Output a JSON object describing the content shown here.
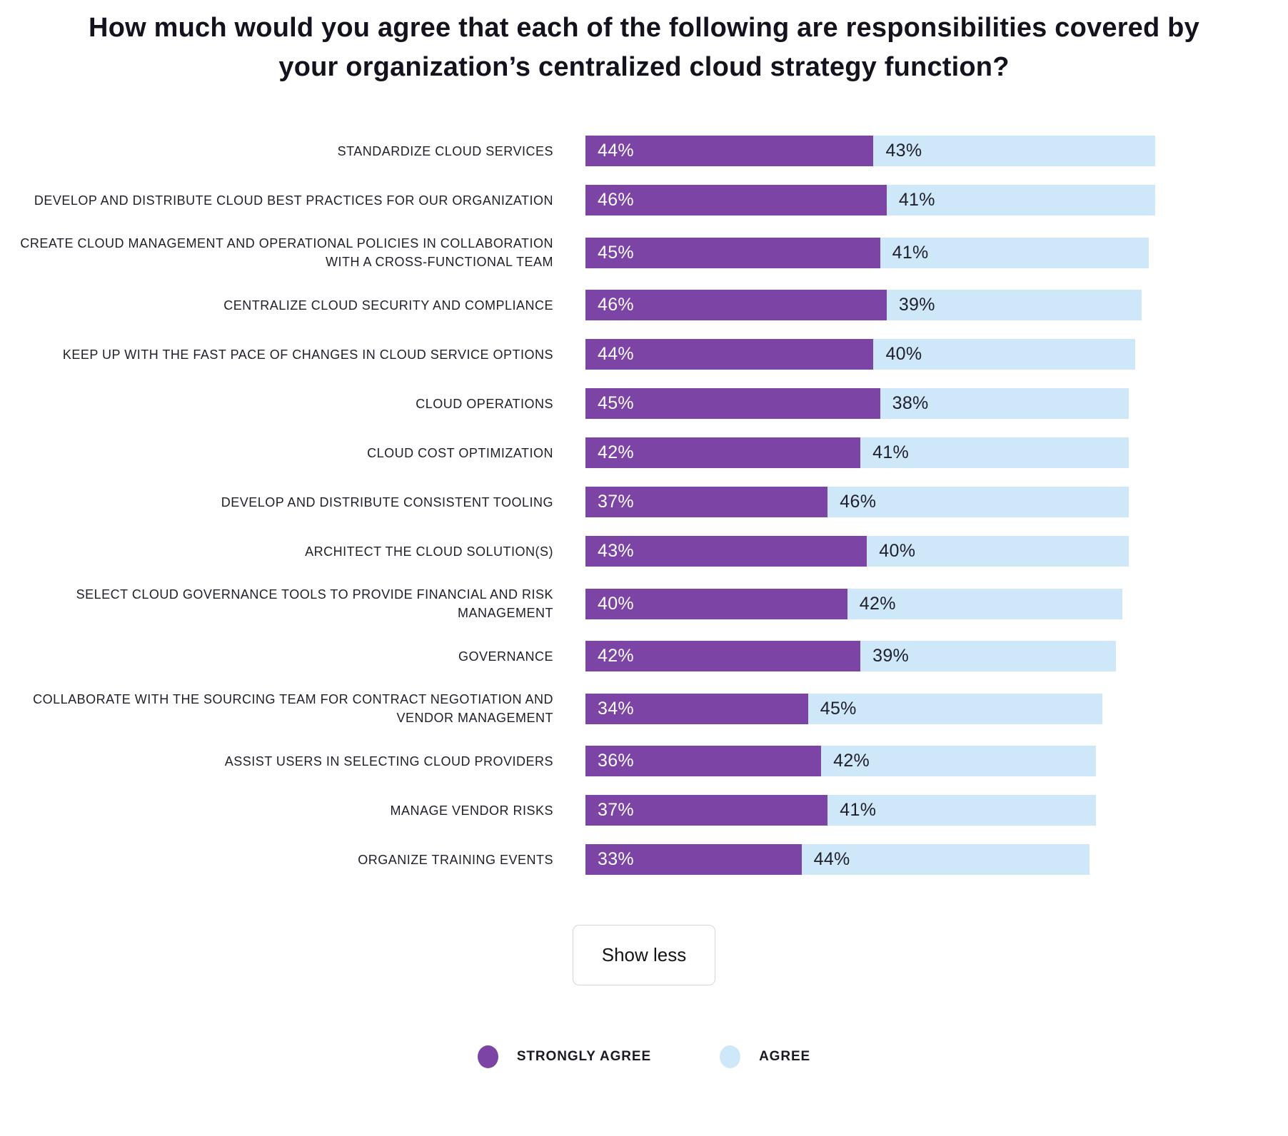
{
  "title": "How much would you agree that each of the following are responsibilities covered by your organization’s centralized cloud strategy function?",
  "chart_data": {
    "type": "bar",
    "orientation": "horizontal",
    "stacked": true,
    "title": "How much would you agree that each of the following are responsibilities covered by your organization’s centralized cloud strategy function?",
    "value_suffix": "%",
    "xlim": [
      0,
      96
    ],
    "grid": false,
    "legend_position": "bottom",
    "categories": [
      "STANDARDIZE CLOUD SERVICES",
      "DEVELOP AND DISTRIBUTE CLOUD BEST PRACTICES FOR OUR ORGANIZATION",
      "CREATE CLOUD MANAGEMENT AND OPERATIONAL POLICIES IN COLLABORATION WITH A CROSS-FUNCTIONAL TEAM",
      "CENTRALIZE CLOUD SECURITY AND COMPLIANCE",
      "KEEP UP WITH THE FAST PACE OF CHANGES IN CLOUD SERVICE OPTIONS",
      "CLOUD OPERATIONS",
      "CLOUD COST OPTIMIZATION",
      "DEVELOP AND DISTRIBUTE CONSISTENT TOOLING",
      "ARCHITECT THE CLOUD SOLUTION(S)",
      "SELECT CLOUD GOVERNANCE TOOLS TO PROVIDE FINANCIAL AND RISK MANAGEMENT",
      "GOVERNANCE",
      "COLLABORATE WITH THE SOURCING TEAM FOR CONTRACT NEGOTIATION AND VENDOR MANAGEMENT",
      "ASSIST USERS IN SELECTING CLOUD PROVIDERS",
      "MANAGE VENDOR RISKS",
      "ORGANIZE TRAINING EVENTS"
    ],
    "series": [
      {
        "name": "STRONGLY AGREE",
        "color": "#7b44a5",
        "values": [
          44,
          46,
          45,
          46,
          44,
          45,
          42,
          37,
          43,
          40,
          42,
          34,
          36,
          37,
          33
        ]
      },
      {
        "name": "AGREE",
        "color": "#cfe8f9",
        "values": [
          43,
          41,
          41,
          39,
          40,
          38,
          41,
          46,
          40,
          42,
          39,
          45,
          42,
          41,
          44
        ]
      }
    ]
  },
  "button": {
    "label": "Show less"
  },
  "legend": {
    "items": [
      {
        "label": "STRONGLY AGREE",
        "color": "#7b44a5"
      },
      {
        "label": "AGREE",
        "color": "#cfe8f9"
      }
    ]
  },
  "colors": {
    "strongly_agree": "#7b44a5",
    "agree": "#cfe8f9",
    "title_text": "#15121e",
    "label_text": "#20202b",
    "background": "#ffffff",
    "button_border": "#d6d6d6"
  }
}
